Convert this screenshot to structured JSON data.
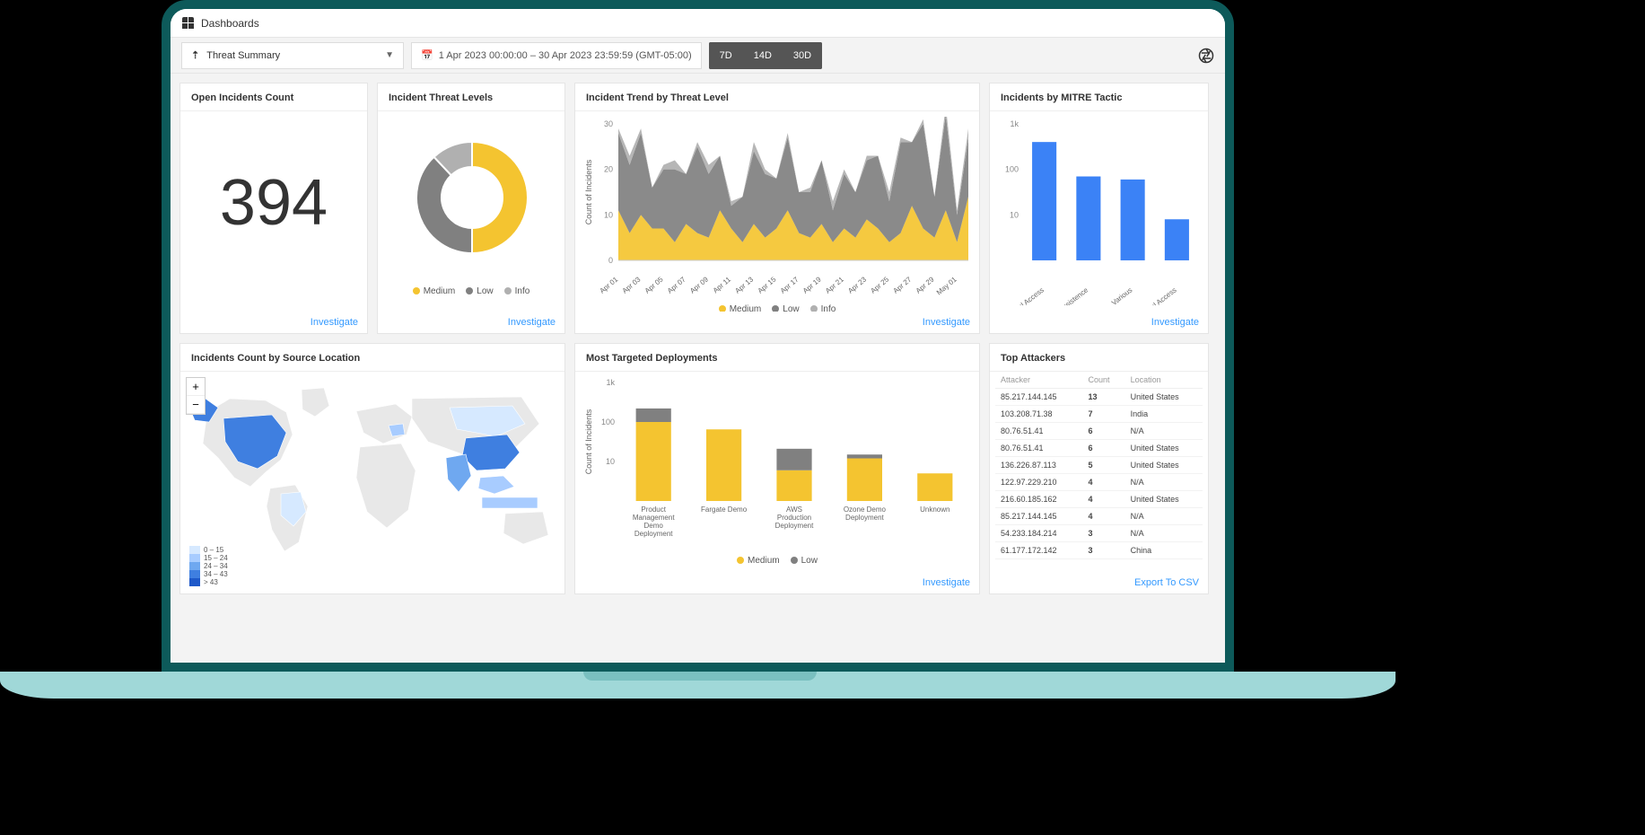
{
  "colors": {
    "medium": "#f4c430",
    "low": "#808080",
    "info": "#b0b0b0",
    "bar_blue": "#3b82f6",
    "link": "#3399ff",
    "card_bg": "#ffffff",
    "page_bg": "#f3f3f3",
    "map_base": "#e8e8e8",
    "map_scale": [
      "#d6e9ff",
      "#a8ccff",
      "#6fa8f0",
      "#3f7fe0",
      "#1e59c9"
    ]
  },
  "topbar": {
    "title": "Dashboards"
  },
  "toolbar": {
    "selector_label": "Threat Summary",
    "date_range": "1 Apr 2023 00:00:00 – 30 Apr 2023 23:59:59 (GMT-05:00)",
    "range_buttons": [
      "7D",
      "14D",
      "30D"
    ]
  },
  "cards": {
    "open_incidents": {
      "title": "Open Incidents Count",
      "value": "394",
      "footer": "Investigate"
    },
    "threat_levels": {
      "title": "Incident Threat Levels",
      "type": "donut",
      "slices": [
        {
          "name": "Medium",
          "value": 50,
          "color": "#f4c430"
        },
        {
          "name": "Low",
          "value": 38,
          "color": "#808080"
        },
        {
          "name": "Info",
          "value": 12,
          "color": "#b0b0b0"
        }
      ],
      "footer": "Investigate"
    },
    "trend": {
      "title": "Incident Trend by Threat Level",
      "type": "stacked-area",
      "ylabel": "Count of Incidents",
      "ylim": [
        0,
        30
      ],
      "ytick_step": 10,
      "x_labels": [
        "Apr 01",
        "Apr 03",
        "Apr 05",
        "Apr 07",
        "Apr 09",
        "Apr 11",
        "Apr 13",
        "Apr 15",
        "Apr 17",
        "Apr 19",
        "Apr 21",
        "Apr 23",
        "Apr 25",
        "Apr 27",
        "Apr 29",
        "May 01"
      ],
      "series": {
        "medium": [
          11,
          6,
          10,
          7,
          7,
          4,
          8,
          6,
          5,
          11,
          7,
          4,
          8,
          5,
          7,
          11,
          6,
          5,
          8,
          4,
          7,
          5,
          9,
          7,
          4,
          6,
          12,
          7,
          5,
          11,
          4,
          14
        ],
        "low": [
          17,
          15,
          18,
          9,
          13,
          16,
          11,
          19,
          14,
          12,
          5,
          10,
          16,
          14,
          11,
          16,
          9,
          10,
          14,
          7,
          12,
          10,
          13,
          16,
          9,
          20,
          14,
          23,
          9,
          21,
          6,
          13
        ],
        "info": [
          1,
          2,
          1,
          0,
          1,
          2,
          0,
          1,
          2,
          0,
          1,
          0,
          2,
          1,
          0,
          1,
          0,
          1,
          0,
          2,
          1,
          0,
          1,
          0,
          2,
          1,
          0,
          1,
          0,
          2,
          1,
          2
        ]
      },
      "legend": [
        "Medium",
        "Low",
        "Info"
      ],
      "footer": "Investigate"
    },
    "mitre": {
      "title": "Incidents by MITRE Tactic",
      "type": "bar",
      "scale": "log",
      "ylabel": "",
      "yticks": [
        10,
        100,
        1000
      ],
      "ytick_labels": [
        "10",
        "100",
        "1k"
      ],
      "categories": [
        "Credential Access",
        "Persistence",
        "Various",
        "Initial Access"
      ],
      "values": [
        400,
        70,
        60,
        8
      ],
      "bar_color": "#3b82f6",
      "footer": "Investigate"
    },
    "map": {
      "title": "Incidents Count by Source Location",
      "type": "choropleth",
      "legend": [
        "0 – 15",
        "15 – 24",
        "24 – 34",
        "34 – 43",
        "> 43"
      ],
      "highlighted": [
        "United States",
        "China",
        "India",
        "Indonesia",
        "Vietnam",
        "Brazil",
        "Turkey",
        "Russia"
      ]
    },
    "deployments": {
      "title": "Most Targeted Deployments",
      "type": "stacked-bar",
      "scale": "log",
      "ylabel": "Count of Incidents",
      "yticks": [
        10,
        100,
        1000
      ],
      "ytick_labels": [
        "10",
        "100",
        "1k"
      ],
      "categories": [
        "Product Management Demo Deployment",
        "Fargate Demo",
        "AWS Production Deployment",
        "Ozone Demo Deployment",
        "Unknown"
      ],
      "series": {
        "medium": [
          100,
          65,
          6,
          12,
          5
        ],
        "low": [
          120,
          0,
          15,
          3,
          0
        ]
      },
      "legend": [
        "Medium",
        "Low"
      ],
      "footer": "Investigate"
    },
    "attackers": {
      "title": "Top Attackers",
      "columns": [
        "Attacker",
        "Count",
        "Location"
      ],
      "rows": [
        [
          "85.217.144.145",
          "13",
          "United States"
        ],
        [
          "103.208.71.38",
          "7",
          "India"
        ],
        [
          "80.76.51.41",
          "6",
          "N/A"
        ],
        [
          "80.76.51.41",
          "6",
          "United States"
        ],
        [
          "136.226.87.113",
          "5",
          "United States"
        ],
        [
          "122.97.229.210",
          "4",
          "N/A"
        ],
        [
          "216.60.185.162",
          "4",
          "United States"
        ],
        [
          "85.217.144.145",
          "4",
          "N/A"
        ],
        [
          "54.233.184.214",
          "3",
          "N/A"
        ],
        [
          "61.177.172.142",
          "3",
          "China"
        ]
      ],
      "footer": "Export To CSV"
    }
  }
}
